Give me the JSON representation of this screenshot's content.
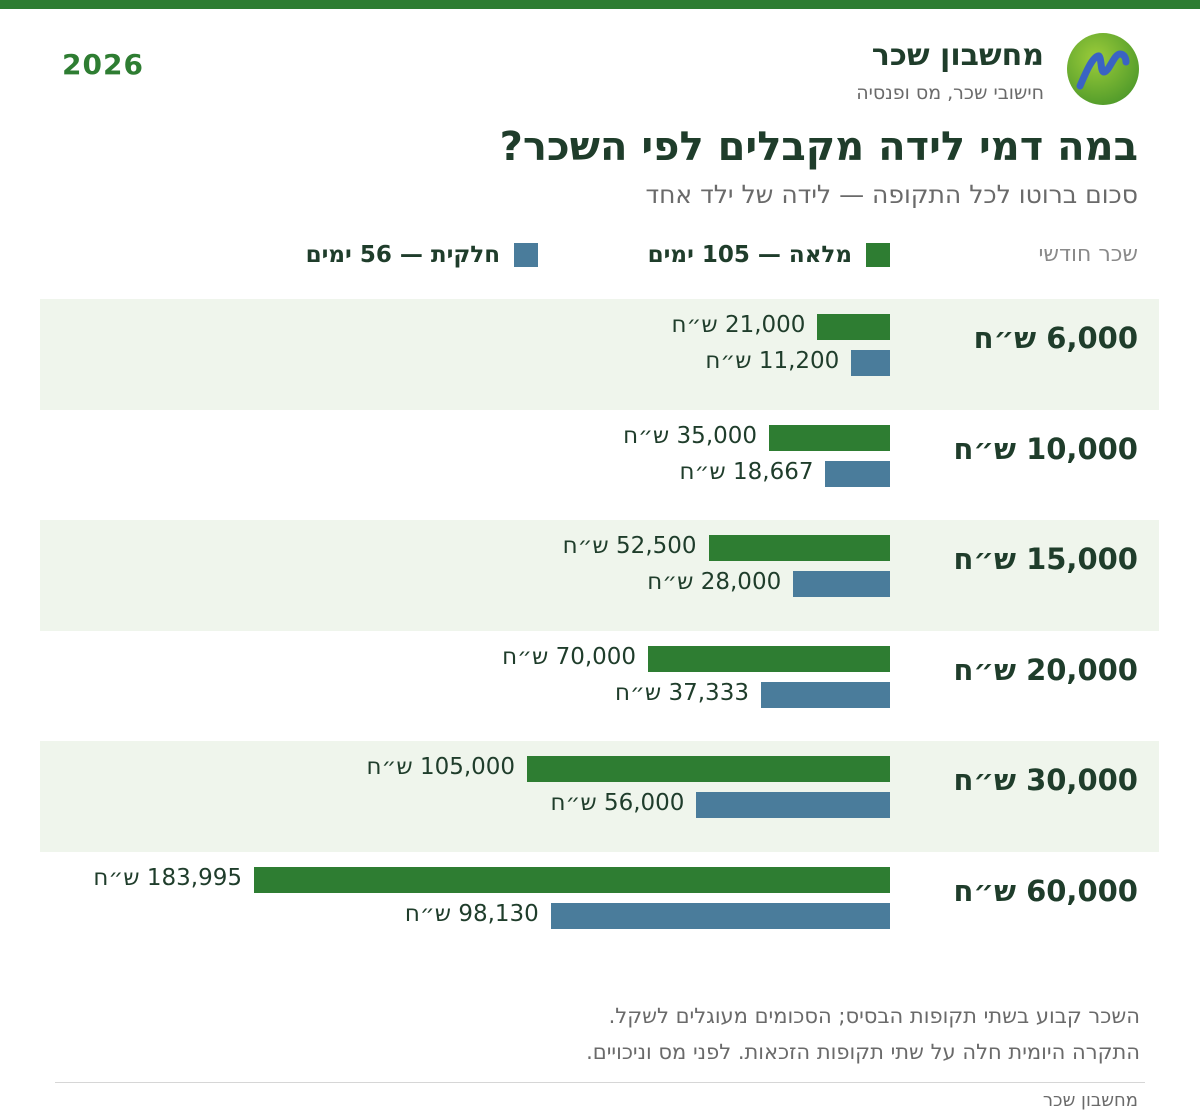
{
  "brand": {
    "name": "מחשבון שכר",
    "tagline": "חישובי שכר, מס ופנסיה",
    "year": "2026"
  },
  "colors": {
    "full": "#2e7d32",
    "partial": "#4a7c9b",
    "band": "#eff5ec"
  },
  "chart_data": {
    "type": "bar",
    "orientation": "horizontal",
    "title": "במה דמי לידה מקבלים לפי השכר?",
    "subtitle": "סכום ברוטו לכל התקופה — לידה של ילד אחד",
    "category_header": "שכר חודשי",
    "categories": [
      "6,000 ש״ח",
      "10,000 ש״ח",
      "15,000 ש״ח",
      "20,000 ש״ח",
      "30,000 ש״ח",
      "60,000 ש״ח"
    ],
    "series": [
      {
        "name": "מלאה — 105 ימים",
        "values": [
          21000,
          35000,
          52500,
          70000,
          105000,
          183995
        ],
        "labels": [
          "21,000 ש״ח",
          "35,000 ש״ח",
          "52,500 ש״ח",
          "70,000 ש״ח",
          "105,000 ש״ח",
          "183,995 ש״ח"
        ]
      },
      {
        "name": "חלקית — 56 ימים",
        "values": [
          11200,
          18667,
          28000,
          37333,
          56000,
          98130
        ],
        "labels": [
          "11,200 ש״ח",
          "18,667 ש״ח",
          "28,000 ש״ח",
          "37,333 ש״ח",
          "56,000 ש״ח",
          "98,130 ש״ח"
        ]
      }
    ],
    "xlim": [
      0,
      183995
    ],
    "grid": false,
    "legend_position": "top"
  },
  "notes": [
    "השכר קבוע בשתי תקופות הבסיס; הסכומים מעוגלים לשקל.",
    "התקרה היומית חלה על שתי תקופות הזכאות. לפני מס וניכויים."
  ],
  "footer": "מחשבון שכר"
}
